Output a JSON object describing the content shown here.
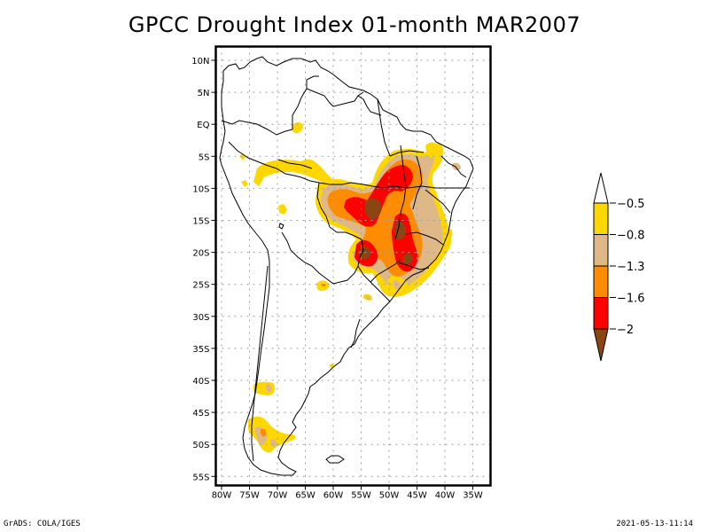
{
  "title": "GPCC Drought Index 01-month MAR2007",
  "footer": {
    "left": "GrADS: COLA/IGES",
    "right": "2021-05-13-11:14"
  },
  "map": {
    "region": "South America",
    "lon_range": [
      -81,
      -31
    ],
    "lat_range": [
      12,
      -56
    ],
    "x_ticks": [
      {
        "lon": -80,
        "label": "80W"
      },
      {
        "lon": -75,
        "label": "75W"
      },
      {
        "lon": -70,
        "label": "70W"
      },
      {
        "lon": -65,
        "label": "65W"
      },
      {
        "lon": -60,
        "label": "60W"
      },
      {
        "lon": -55,
        "label": "55W"
      },
      {
        "lon": -50,
        "label": "50W"
      },
      {
        "lon": -45,
        "label": "45W"
      },
      {
        "lon": -40,
        "label": "40W"
      },
      {
        "lon": -35,
        "label": "35W"
      }
    ],
    "y_ticks": [
      {
        "lat": 10,
        "label": "10N"
      },
      {
        "lat": 5,
        "label": "5N"
      },
      {
        "lat": 0,
        "label": "EQ"
      },
      {
        "lat": -5,
        "label": "5S"
      },
      {
        "lat": -10,
        "label": "10S"
      },
      {
        "lat": -15,
        "label": "15S"
      },
      {
        "lat": -20,
        "label": "20S"
      },
      {
        "lat": -25,
        "label": "25S"
      },
      {
        "lat": -30,
        "label": "30S"
      },
      {
        "lat": -35,
        "label": "35S"
      },
      {
        "lat": -40,
        "label": "40S"
      },
      {
        "lat": -45,
        "label": "45S"
      },
      {
        "lat": -50,
        "label": "50S"
      },
      {
        "lat": -55,
        "label": "55S"
      }
    ],
    "grid": "dotted"
  },
  "colorbar": {
    "levels": [
      {
        "label": "-0.5",
        "color": "#ffd700"
      },
      {
        "label": "-0.8",
        "color": "#deb887"
      },
      {
        "label": "-1.3",
        "color": "#ff8c00"
      },
      {
        "label": "-1.6",
        "color": "#ff0000"
      },
      {
        "label": "-2",
        "color": "#8b4513"
      }
    ],
    "top_arrow_color": "#ffffff",
    "bottom_arrow_color": "#8b4513",
    "bins": [
      {
        "range": "> -0.5",
        "color": "#ffffff"
      },
      {
        "range": "-0.8 to -0.5",
        "color": "#ffd700"
      },
      {
        "range": "-1.3 to -0.8",
        "color": "#deb887"
      },
      {
        "range": "-1.6 to -1.3",
        "color": "#ff8c00"
      },
      {
        "range": "-2 to -1.6",
        "color": "#ff0000"
      },
      {
        "range": "< -2",
        "color": "#8b4513"
      }
    ]
  },
  "drought_regions": [
    {
      "name": "central-brazil-mato-grosso",
      "approx_lon": -54,
      "approx_lat": -13,
      "max_category": "< -2"
    },
    {
      "name": "northeast-brazil-tocantins-maranhao",
      "approx_lon": -47,
      "approx_lat": -9,
      "max_category": "-2 to -1.6"
    },
    {
      "name": "goias-minas",
      "approx_lon": -48,
      "approx_lat": -16,
      "max_category": "< -2"
    },
    {
      "name": "mato-grosso-do-sul",
      "approx_lon": -54,
      "approx_lat": -20,
      "max_category": "< -2"
    },
    {
      "name": "sao-paulo",
      "approx_lon": -46,
      "approx_lat": -21,
      "max_category": "< -2"
    },
    {
      "name": "western-amazon-band",
      "approx_lon": -66,
      "approx_lat": -8,
      "max_category": "-0.8 to -0.5"
    },
    {
      "name": "patagonia-south-chile",
      "approx_lon": -72,
      "approx_lat": -48,
      "max_category": "-1.6 to -1.3"
    }
  ]
}
